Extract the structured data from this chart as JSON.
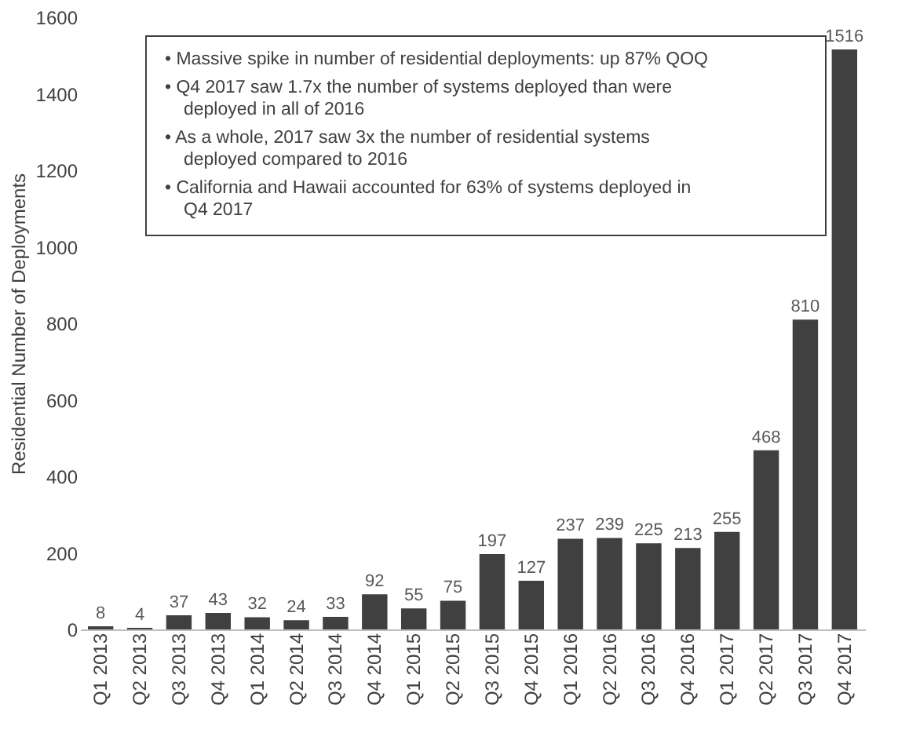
{
  "chart_data": {
    "type": "bar",
    "ylabel": "Residential Number of Deployments",
    "categories": [
      "Q1 2013",
      "Q2 2013",
      "Q3 2013",
      "Q4 2013",
      "Q1 2014",
      "Q2 2014",
      "Q3 2014",
      "Q4 2014",
      "Q1 2015",
      "Q2 2015",
      "Q3 2015",
      "Q4 2015",
      "Q1 2016",
      "Q2 2016",
      "Q3 2016",
      "Q4 2016",
      "Q1 2017",
      "Q2 2017",
      "Q3 2017",
      "Q4 2017"
    ],
    "values": [
      8,
      4,
      37,
      43,
      32,
      24,
      33,
      92,
      55,
      75,
      197,
      127,
      237,
      239,
      225,
      213,
      255,
      468,
      810,
      1516
    ],
    "color": "#404040",
    "ylim": [
      0,
      1600
    ],
    "yticks": [
      0,
      200,
      400,
      600,
      800,
      1000,
      1200,
      1400,
      1600
    ],
    "grid": false,
    "data_labels": true,
    "annotations": [
      "• Massive spike in number of residential deployments: up 87% QOQ",
      "• Q4 2017 saw 1.7x the number of systems deployed than were deployed in all of 2016",
      "• As a whole, 2017 saw 3x the number of residential systems deployed compared to 2016",
      "• California and Hawaii accounted for 63% of systems deployed in Q4 2017"
    ]
  }
}
